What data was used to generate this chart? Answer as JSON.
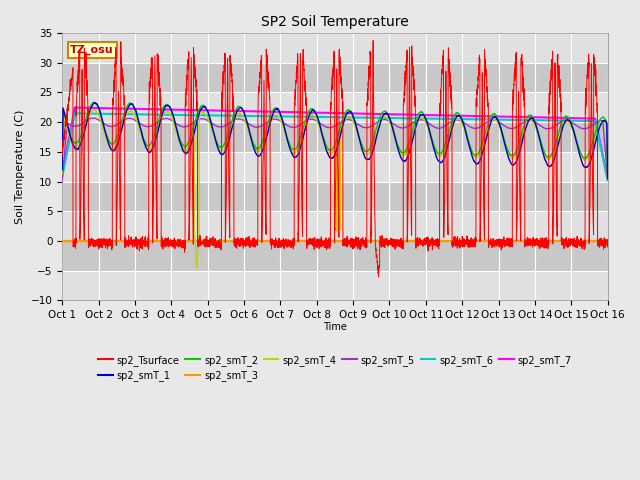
{
  "title": "SP2 Soil Temperature",
  "ylabel": "Soil Temperature (C)",
  "xlabel": "Time",
  "timezone_label": "TZ_osu",
  "ylim": [
    -10,
    35
  ],
  "yticks": [
    -10,
    -5,
    0,
    5,
    10,
    15,
    20,
    25,
    30,
    35
  ],
  "xtick_labels": [
    "Oct 1",
    "Oct 2",
    "Oct 3",
    "Oct 4",
    "Oct 5",
    "Oct 6",
    "Oct 7",
    "Oct 8",
    "Oct 9",
    "Oct 10",
    "Oct 11",
    "Oct 12",
    "Oct 13",
    "Oct 14",
    "Oct 15",
    "Oct 16"
  ],
  "series_colors": {
    "sp2_Tsurface": "#ff0000",
    "sp2_smT_1": "#0000cc",
    "sp2_smT_2": "#00cc00",
    "sp2_smT_3": "#ff9900",
    "sp2_smT_4": "#cccc00",
    "sp2_smT_5": "#9933cc",
    "sp2_smT_6": "#00cccc",
    "sp2_smT_7": "#ff00ff"
  },
  "fig_bg": "#e8e8e8",
  "plot_bg": "#d0d0d0",
  "grid_color": "#ffffff",
  "band_color_light": "#e0e0e0",
  "band_color_dark": "#c8c8c8"
}
